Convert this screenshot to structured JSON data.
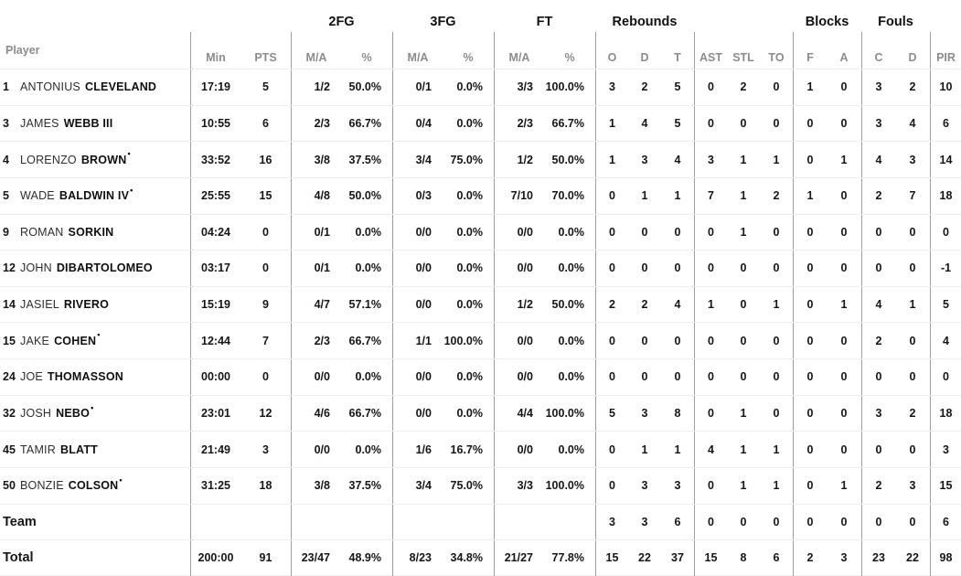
{
  "table": {
    "group_headers": {
      "fg2": "2FG",
      "fg3": "3FG",
      "ft": "FT",
      "rebounds": "Rebounds",
      "blocks": "Blocks",
      "fouls": "Fouls"
    },
    "sub_headers": {
      "player": "Player",
      "min": "Min",
      "pts": "PTS",
      "ma": "M/A",
      "pct": "%",
      "reb_o": "O",
      "reb_d": "D",
      "reb_t": "T",
      "ast": "AST",
      "stl": "STL",
      "to": "TO",
      "block_f": "F",
      "block_a": "A",
      "foul_c": "C",
      "foul_d": "D",
      "pir": "PIR"
    },
    "starter_marker": "•",
    "rows": [
      {
        "type": "player",
        "num": "1",
        "first": "ANTONIUS",
        "last": "CLEVELAND",
        "starter": false,
        "min": "17:19",
        "pts": "5",
        "fg2": "1/2",
        "fg2p": "50.0%",
        "fg3": "0/1",
        "fg3p": "0.0%",
        "ft": "3/3",
        "ftp": "100.0%",
        "ro": "3",
        "rd": "2",
        "rt": "5",
        "ast": "0",
        "stl": "2",
        "to": "0",
        "bf": "1",
        "ba": "0",
        "fc": "3",
        "fd": "2",
        "pir": "10"
      },
      {
        "type": "player",
        "num": "3",
        "first": "JAMES",
        "last": "WEBB III",
        "starter": false,
        "min": "10:55",
        "pts": "6",
        "fg2": "2/3",
        "fg2p": "66.7%",
        "fg3": "0/4",
        "fg3p": "0.0%",
        "ft": "2/3",
        "ftp": "66.7%",
        "ro": "1",
        "rd": "4",
        "rt": "5",
        "ast": "0",
        "stl": "0",
        "to": "0",
        "bf": "0",
        "ba": "0",
        "fc": "3",
        "fd": "4",
        "pir": "6"
      },
      {
        "type": "player",
        "num": "4",
        "first": "LORENZO",
        "last": "BROWN",
        "starter": true,
        "min": "33:52",
        "pts": "16",
        "fg2": "3/8",
        "fg2p": "37.5%",
        "fg3": "3/4",
        "fg3p": "75.0%",
        "ft": "1/2",
        "ftp": "50.0%",
        "ro": "1",
        "rd": "3",
        "rt": "4",
        "ast": "3",
        "stl": "1",
        "to": "1",
        "bf": "0",
        "ba": "1",
        "fc": "4",
        "fd": "3",
        "pir": "14"
      },
      {
        "type": "player",
        "num": "5",
        "first": "WADE",
        "last": "BALDWIN IV",
        "starter": true,
        "min": "25:55",
        "pts": "15",
        "fg2": "4/8",
        "fg2p": "50.0%",
        "fg3": "0/3",
        "fg3p": "0.0%",
        "ft": "7/10",
        "ftp": "70.0%",
        "ro": "0",
        "rd": "1",
        "rt": "1",
        "ast": "7",
        "stl": "1",
        "to": "2",
        "bf": "1",
        "ba": "0",
        "fc": "2",
        "fd": "7",
        "pir": "18"
      },
      {
        "type": "player",
        "num": "9",
        "first": "ROMAN",
        "last": "SORKIN",
        "starter": false,
        "min": "04:24",
        "pts": "0",
        "fg2": "0/1",
        "fg2p": "0.0%",
        "fg3": "0/0",
        "fg3p": "0.0%",
        "ft": "0/0",
        "ftp": "0.0%",
        "ro": "0",
        "rd": "0",
        "rt": "0",
        "ast": "0",
        "stl": "1",
        "to": "0",
        "bf": "0",
        "ba": "0",
        "fc": "0",
        "fd": "0",
        "pir": "0"
      },
      {
        "type": "player",
        "num": "12",
        "first": "JOHN",
        "last": "DIBARTOLOMEO",
        "starter": false,
        "min": "03:17",
        "pts": "0",
        "fg2": "0/1",
        "fg2p": "0.0%",
        "fg3": "0/0",
        "fg3p": "0.0%",
        "ft": "0/0",
        "ftp": "0.0%",
        "ro": "0",
        "rd": "0",
        "rt": "0",
        "ast": "0",
        "stl": "0",
        "to": "0",
        "bf": "0",
        "ba": "0",
        "fc": "0",
        "fd": "0",
        "pir": "-1"
      },
      {
        "type": "player",
        "num": "14",
        "first": "JASIEL",
        "last": "RIVERO",
        "starter": false,
        "min": "15:19",
        "pts": "9",
        "fg2": "4/7",
        "fg2p": "57.1%",
        "fg3": "0/0",
        "fg3p": "0.0%",
        "ft": "1/2",
        "ftp": "50.0%",
        "ro": "2",
        "rd": "2",
        "rt": "4",
        "ast": "1",
        "stl": "0",
        "to": "1",
        "bf": "0",
        "ba": "1",
        "fc": "4",
        "fd": "1",
        "pir": "5"
      },
      {
        "type": "player",
        "num": "15",
        "first": "JAKE",
        "last": "COHEN",
        "starter": true,
        "min": "12:44",
        "pts": "7",
        "fg2": "2/3",
        "fg2p": "66.7%",
        "fg3": "1/1",
        "fg3p": "100.0%",
        "ft": "0/0",
        "ftp": "0.0%",
        "ro": "0",
        "rd": "0",
        "rt": "0",
        "ast": "0",
        "stl": "0",
        "to": "0",
        "bf": "0",
        "ba": "0",
        "fc": "2",
        "fd": "0",
        "pir": "4"
      },
      {
        "type": "player",
        "num": "24",
        "first": "JOE",
        "last": "THOMASSON",
        "starter": false,
        "min": "00:00",
        "pts": "0",
        "fg2": "0/0",
        "fg2p": "0.0%",
        "fg3": "0/0",
        "fg3p": "0.0%",
        "ft": "0/0",
        "ftp": "0.0%",
        "ro": "0",
        "rd": "0",
        "rt": "0",
        "ast": "0",
        "stl": "0",
        "to": "0",
        "bf": "0",
        "ba": "0",
        "fc": "0",
        "fd": "0",
        "pir": "0"
      },
      {
        "type": "player",
        "num": "32",
        "first": "JOSH",
        "last": "NEBO",
        "starter": true,
        "min": "23:01",
        "pts": "12",
        "fg2": "4/6",
        "fg2p": "66.7%",
        "fg3": "0/0",
        "fg3p": "0.0%",
        "ft": "4/4",
        "ftp": "100.0%",
        "ro": "5",
        "rd": "3",
        "rt": "8",
        "ast": "0",
        "stl": "1",
        "to": "0",
        "bf": "0",
        "ba": "0",
        "fc": "3",
        "fd": "2",
        "pir": "18"
      },
      {
        "type": "player",
        "num": "45",
        "first": "TAMIR",
        "last": "BLATT",
        "starter": false,
        "min": "21:49",
        "pts": "3",
        "fg2": "0/0",
        "fg2p": "0.0%",
        "fg3": "1/6",
        "fg3p": "16.7%",
        "ft": "0/0",
        "ftp": "0.0%",
        "ro": "0",
        "rd": "1",
        "rt": "1",
        "ast": "4",
        "stl": "1",
        "to": "1",
        "bf": "0",
        "ba": "0",
        "fc": "0",
        "fd": "0",
        "pir": "3"
      },
      {
        "type": "player",
        "num": "50",
        "first": "BONZIE",
        "last": "COLSON",
        "starter": true,
        "min": "31:25",
        "pts": "18",
        "fg2": "3/8",
        "fg2p": "37.5%",
        "fg3": "3/4",
        "fg3p": "75.0%",
        "ft": "3/3",
        "ftp": "100.0%",
        "ro": "0",
        "rd": "3",
        "rt": "3",
        "ast": "0",
        "stl": "1",
        "to": "1",
        "bf": "0",
        "ba": "1",
        "fc": "2",
        "fd": "3",
        "pir": "15"
      },
      {
        "type": "team",
        "label": "Team",
        "min": "",
        "pts": "",
        "fg2": "",
        "fg2p": "",
        "fg3": "",
        "fg3p": "",
        "ft": "",
        "ftp": "",
        "ro": "3",
        "rd": "3",
        "rt": "6",
        "ast": "0",
        "stl": "0",
        "to": "0",
        "bf": "0",
        "ba": "0",
        "fc": "0",
        "fd": "0",
        "pir": "6"
      },
      {
        "type": "total",
        "label": "Total",
        "min": "200:00",
        "pts": "91",
        "fg2": "23/47",
        "fg2p": "48.9%",
        "fg3": "8/23",
        "fg3p": "34.8%",
        "ft": "21/27",
        "ftp": "77.8%",
        "ro": "15",
        "rd": "22",
        "rt": "37",
        "ast": "15",
        "stl": "8",
        "to": "6",
        "bf": "2",
        "ba": "3",
        "fc": "23",
        "fd": "22",
        "pir": "98"
      }
    ]
  },
  "colors": {
    "text": "#161616",
    "header_gray": "#8c8c8e",
    "vertical_line": "#9e9e9e",
    "horizontal_line": "#ededed",
    "background": "#ffffff"
  }
}
